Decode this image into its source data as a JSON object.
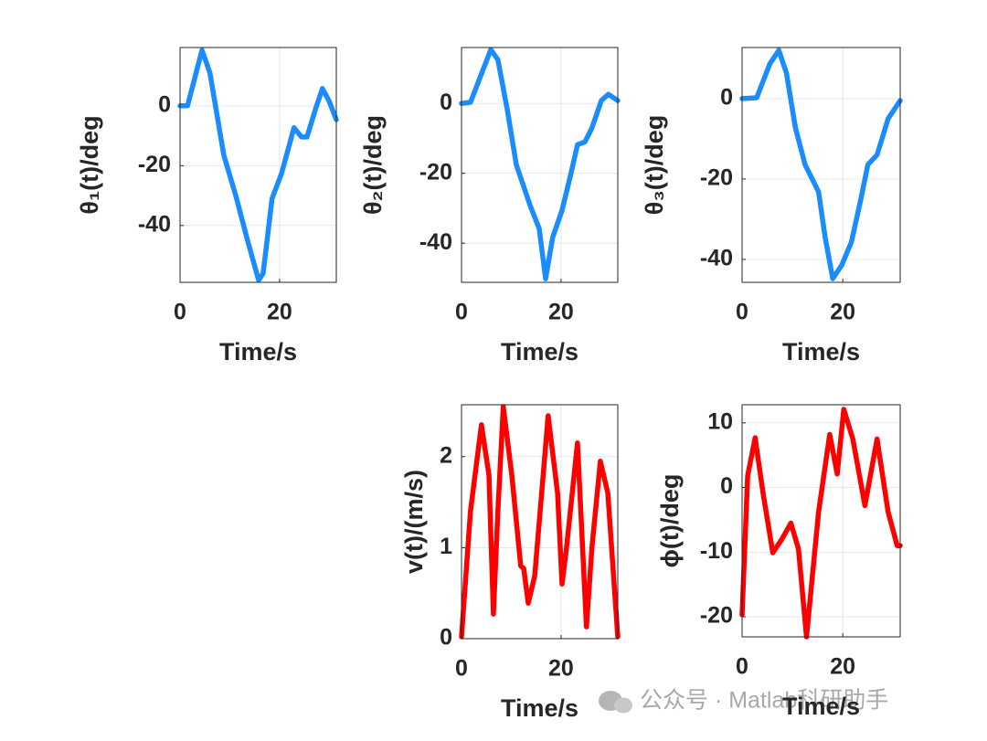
{
  "chart_data": [
    {
      "type": "line",
      "xlabel": "Time/s",
      "ylabel": "θ₁(t)/deg",
      "xlim": [
        0,
        31.4
      ],
      "ylim": [
        -59,
        19.5
      ],
      "xticks": [
        0,
        20
      ],
      "yticks": [
        0,
        -20,
        -40
      ],
      "grid": true,
      "x": [
        0,
        1.5,
        4.4,
        6,
        8.8,
        11.2,
        13.4,
        15.8,
        16.7,
        18.5,
        20.4,
        22.9,
        24.4,
        25.5,
        27.2,
        28.6,
        29.9,
        31.4
      ],
      "series": [
        {
          "color": "#1a8cff",
          "values": [
            0,
            0,
            18.6,
            11,
            -16.5,
            -30,
            -44,
            -58.3,
            -56,
            -31,
            -22.6,
            -7.3,
            -10.4,
            -10.4,
            -1.2,
            5.8,
            1.8,
            -4.6
          ]
        }
      ]
    },
    {
      "type": "line",
      "xlabel": "Time/s",
      "ylabel": "θ₂(t)/deg",
      "xlim": [
        0,
        31.4
      ],
      "ylim": [
        -51.2,
        16
      ],
      "xticks": [
        0,
        20
      ],
      "yticks": [
        0,
        -20,
        -40
      ],
      "grid": true,
      "x": [
        0,
        1.8,
        5.9,
        7.3,
        9.2,
        11,
        13.8,
        15.6,
        16.9,
        18.3,
        20.2,
        22,
        23.3,
        24.8,
        26.2,
        28.1,
        29.5,
        31.4
      ],
      "series": [
        {
          "color": "#1a8cff",
          "values": [
            0,
            0.3,
            15.4,
            12.5,
            -1.8,
            -17.5,
            -29.3,
            -35.8,
            -50.2,
            -38.4,
            -30.6,
            -20,
            -11.8,
            -11,
            -7,
            0.8,
            2.6,
            0.8
          ]
        }
      ]
    },
    {
      "type": "line",
      "xlabel": "Time/s",
      "ylabel": "θ₃(t)/deg",
      "xlim": [
        0,
        31.4
      ],
      "ylim": [
        -45.7,
        12.7
      ],
      "xticks": [
        0,
        20
      ],
      "yticks": [
        0,
        -20,
        -40
      ],
      "grid": true,
      "x": [
        0,
        2.9,
        5.5,
        7.3,
        8.8,
        10.6,
        12.5,
        15.2,
        16.5,
        18,
        19.8,
        21.7,
        23.5,
        25,
        26.8,
        29,
        31.4
      ],
      "series": [
        {
          "color": "#1a8cff",
          "values": [
            0,
            0.2,
            8.6,
            12,
            6.4,
            -7.3,
            -16.4,
            -23.2,
            -34.5,
            -44.8,
            -41.4,
            -35.7,
            -25.5,
            -16.4,
            -14,
            -5,
            -0.5
          ]
        }
      ]
    },
    {
      "type": "line",
      "xlabel": "Time/s",
      "ylabel": "v(t)/(m/s)",
      "xlim": [
        0,
        31.4
      ],
      "ylim": [
        0,
        2.57
      ],
      "xticks": [
        0,
        20
      ],
      "yticks": [
        0,
        1,
        2
      ],
      "grid": true,
      "x": [
        0,
        1.8,
        4,
        5.5,
        6.4,
        7.3,
        8.4,
        10.1,
        11.9,
        12.5,
        13.4,
        14.7,
        17.4,
        19.3,
        20.2,
        21.1,
        23.3,
        25.1,
        26.2,
        27.9,
        29.4,
        31.4
      ],
      "series": [
        {
          "color": "#ff0000",
          "values": [
            0.02,
            1.4,
            2.35,
            1.8,
            0.27,
            1.4,
            2.55,
            1.8,
            0.8,
            0.77,
            0.39,
            0.69,
            2.45,
            1.6,
            0.6,
            1,
            2.15,
            0.13,
            1,
            1.95,
            1.6,
            0.02
          ]
        }
      ]
    },
    {
      "type": "line",
      "xlabel": "Time/s",
      "ylabel": "ϕ(t)/deg",
      "xlim": [
        0,
        31.4
      ],
      "ylim": [
        -23.1,
        12.8
      ],
      "xticks": [
        0,
        20
      ],
      "yticks": [
        10,
        0,
        -10,
        -20
      ],
      "grid": true,
      "x": [
        0,
        1.1,
        2.6,
        4.2,
        6.1,
        7.9,
        9.7,
        11.2,
        12.8,
        15.2,
        17.4,
        18.9,
        20.2,
        22,
        24.4,
        26.8,
        29,
        30.8,
        31.4
      ],
      "series": [
        {
          "color": "#ff0000",
          "values": [
            -19.7,
            1.8,
            7.7,
            -1,
            -10.1,
            -8,
            -5.5,
            -9.5,
            -23.1,
            -3.8,
            8.2,
            2.1,
            12.1,
            7.5,
            -2.8,
            7.5,
            -3.8,
            -9,
            -9
          ]
        }
      ]
    }
  ],
  "watermark": "公众号 · Matlab科研助手"
}
